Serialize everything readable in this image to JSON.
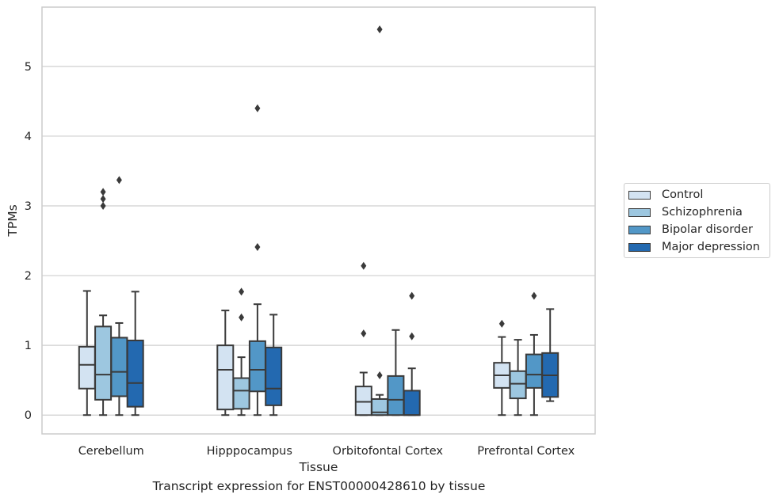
{
  "caption": "Transcript expression for ENST00000428610 by tissue",
  "chart_data": {
    "type": "boxplot",
    "xlabel": "Tissue",
    "ylabel": "TPMs",
    "ylim": [
      -0.27,
      5.85
    ],
    "yticks": [
      0,
      1,
      2,
      3,
      4,
      5
    ],
    "grid": true,
    "legend_position": "right",
    "categories": [
      "Cerebellum",
      "Hipppocampus",
      "Orbitofontal Cortex",
      "Prefrontal Cortex"
    ],
    "series": [
      {
        "name": "Control",
        "color": "#d3e3f2",
        "boxes": [
          {
            "whisker_low": 0.0,
            "q1": 0.38,
            "median": 0.72,
            "q3": 0.98,
            "whisker_high": 1.78,
            "outliers": []
          },
          {
            "whisker_low": 0.0,
            "q1": 0.08,
            "median": 0.65,
            "q3": 1.0,
            "whisker_high": 1.5,
            "outliers": []
          },
          {
            "whisker_low": 0.0,
            "q1": 0.0,
            "median": 0.19,
            "q3": 0.41,
            "whisker_high": 0.61,
            "outliers": [
              1.17,
              2.14
            ]
          },
          {
            "whisker_low": 0.0,
            "q1": 0.39,
            "median": 0.57,
            "q3": 0.75,
            "whisker_high": 1.12,
            "outliers": [
              1.31
            ]
          }
        ]
      },
      {
        "name": "Schizophrenia",
        "color": "#9dc7e0",
        "boxes": [
          {
            "whisker_low": 0.0,
            "q1": 0.22,
            "median": 0.58,
            "q3": 1.27,
            "whisker_high": 1.43,
            "outliers": [
              3.0,
              3.1,
              3.2
            ]
          },
          {
            "whisker_low": 0.0,
            "q1": 0.09,
            "median": 0.35,
            "q3": 0.53,
            "whisker_high": 0.83,
            "outliers": [
              1.4,
              1.77
            ]
          },
          {
            "whisker_low": 0.0,
            "q1": 0.0,
            "median": 0.04,
            "q3": 0.23,
            "whisker_high": 0.29,
            "outliers": [
              0.57,
              5.53
            ]
          },
          {
            "whisker_low": 0.0,
            "q1": 0.24,
            "median": 0.45,
            "q3": 0.63,
            "whisker_high": 1.08,
            "outliers": []
          }
        ]
      },
      {
        "name": "Bipolar disorder",
        "color": "#5297c7",
        "boxes": [
          {
            "whisker_low": 0.0,
            "q1": 0.27,
            "median": 0.62,
            "q3": 1.11,
            "whisker_high": 1.32,
            "outliers": [
              3.37
            ]
          },
          {
            "whisker_low": 0.0,
            "q1": 0.34,
            "median": 0.65,
            "q3": 1.06,
            "whisker_high": 1.59,
            "outliers": [
              2.41,
              4.4
            ]
          },
          {
            "whisker_low": 0.0,
            "q1": 0.0,
            "median": 0.22,
            "q3": 0.56,
            "whisker_high": 1.22,
            "outliers": []
          },
          {
            "whisker_low": 0.0,
            "q1": 0.39,
            "median": 0.58,
            "q3": 0.87,
            "whisker_high": 1.15,
            "outliers": [
              1.71
            ]
          }
        ]
      },
      {
        "name": "Major depression",
        "color": "#2369b0",
        "boxes": [
          {
            "whisker_low": 0.0,
            "q1": 0.12,
            "median": 0.46,
            "q3": 1.07,
            "whisker_high": 1.77,
            "outliers": []
          },
          {
            "whisker_low": 0.0,
            "q1": 0.14,
            "median": 0.38,
            "q3": 0.97,
            "whisker_high": 1.44,
            "outliers": []
          },
          {
            "whisker_low": 0.0,
            "q1": 0.0,
            "median": 0.0,
            "q3": 0.35,
            "whisker_high": 0.67,
            "outliers": [
              1.13,
              1.71
            ]
          },
          {
            "whisker_low": 0.2,
            "q1": 0.26,
            "median": 0.57,
            "q3": 0.89,
            "whisker_high": 1.52,
            "outliers": []
          }
        ]
      }
    ]
  }
}
